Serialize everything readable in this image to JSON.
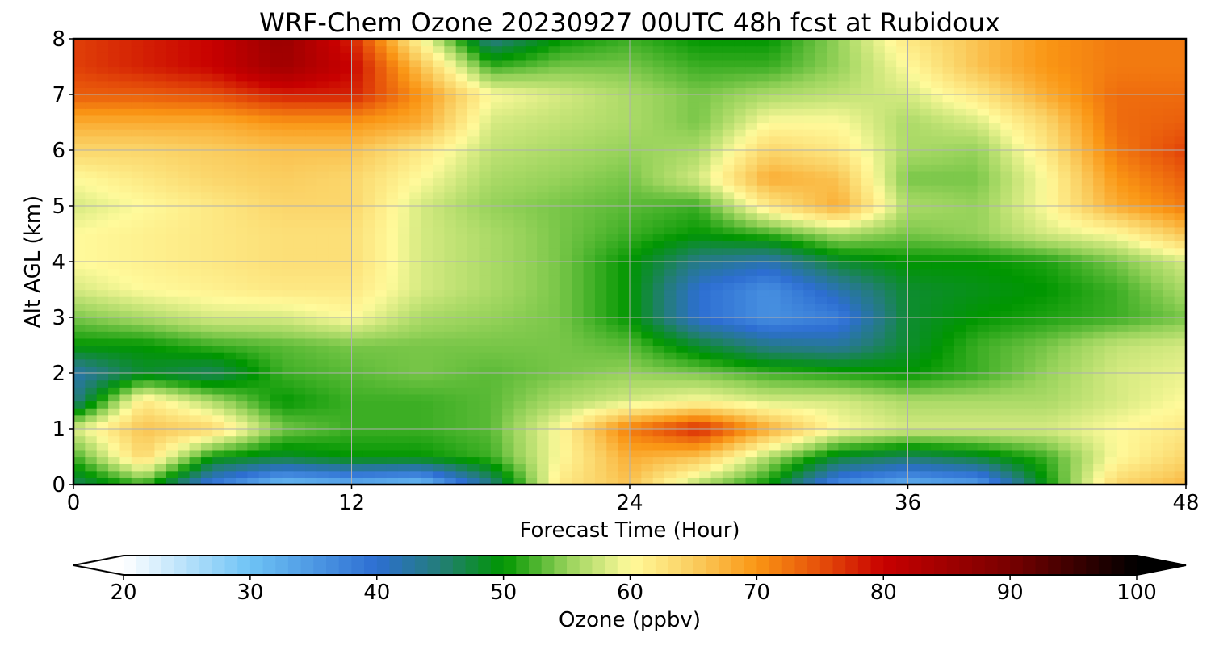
{
  "chart_data": {
    "type": "heatmap",
    "title": "WRF-Chem Ozone  20230927 00UTC 48h fcst at Rubidoux",
    "xlabel": "Forecast Time (Hour)",
    "ylabel": "Alt AGL (km)",
    "xlim": [
      0,
      48
    ],
    "ylim": [
      0,
      8
    ],
    "x_ticks": [
      "0",
      "12",
      "24",
      "36",
      "48"
    ],
    "y_ticks": [
      "0",
      "1",
      "2",
      "3",
      "4",
      "5",
      "6",
      "7",
      "8"
    ],
    "grid": true,
    "colorbar": {
      "label": "Ozone  (ppbv)",
      "range": [
        20,
        100
      ],
      "ticks": [
        "20",
        "30",
        "40",
        "50",
        "60",
        "70",
        "80",
        "90",
        "100"
      ],
      "extend": "both"
    },
    "altitudes_km": [
      0,
      0.5,
      1,
      1.5,
      2,
      2.5,
      3,
      3.5,
      4,
      4.5,
      5,
      5.5,
      6,
      6.5,
      7,
      7.5,
      8
    ],
    "hours": [
      0,
      3,
      6,
      9,
      12,
      15,
      18,
      21,
      24,
      27,
      30,
      33,
      36,
      39,
      42,
      45,
      48
    ],
    "values_ppbv": [
      [
        46,
        52,
        38,
        30,
        32,
        30,
        44,
        62,
        66,
        56,
        50,
        36,
        32,
        34,
        50,
        64,
        67
      ],
      [
        52,
        64,
        50,
        48,
        50,
        50,
        52,
        60,
        68,
        66,
        56,
        48,
        46,
        48,
        52,
        60,
        64
      ],
      [
        58,
        66,
        64,
        54,
        52,
        52,
        53,
        60,
        72,
        78,
        68,
        60,
        58,
        58,
        58,
        60,
        62
      ],
      [
        44,
        62,
        56,
        50,
        52,
        52,
        53,
        56,
        58,
        60,
        58,
        58,
        56,
        56,
        56,
        58,
        60
      ],
      [
        42,
        48,
        46,
        52,
        53,
        54,
        53,
        54,
        55,
        54,
        52,
        51,
        50,
        52,
        55,
        58,
        59
      ],
      [
        50,
        50,
        52,
        53,
        54,
        54,
        54,
        54,
        53,
        48,
        44,
        43,
        48,
        52,
        54,
        57,
        58
      ],
      [
        54,
        56,
        58,
        58,
        60,
        56,
        55,
        54,
        50,
        40,
        36,
        38,
        48,
        50,
        51,
        52,
        54
      ],
      [
        58,
        60,
        61,
        62,
        62,
        58,
        56,
        54,
        50,
        40,
        36,
        42,
        48,
        49,
        50,
        52,
        56
      ],
      [
        60,
        61,
        62,
        63,
        63,
        58,
        56,
        54,
        50,
        44,
        42,
        48,
        50,
        50,
        51,
        54,
        58
      ],
      [
        60,
        61,
        62,
        63,
        63,
        58,
        56,
        54,
        52,
        50,
        52,
        56,
        54,
        55,
        58,
        60,
        66
      ],
      [
        58,
        60,
        62,
        64,
        64,
        58,
        55,
        54,
        53,
        52,
        62,
        68,
        56,
        55,
        60,
        68,
        72
      ],
      [
        60,
        62,
        64,
        65,
        64,
        60,
        56,
        55,
        54,
        58,
        68,
        66,
        54,
        54,
        60,
        70,
        74
      ],
      [
        64,
        64,
        65,
        66,
        66,
        62,
        57,
        56,
        55,
        56,
        64,
        62,
        56,
        55,
        62,
        72,
        76
      ],
      [
        68,
        68,
        68,
        70,
        70,
        68,
        58,
        57,
        56,
        54,
        60,
        60,
        56,
        58,
        64,
        73,
        74
      ],
      [
        74,
        74,
        75,
        78,
        78,
        70,
        60,
        58,
        56,
        54,
        56,
        57,
        58,
        62,
        68,
        73,
        73
      ],
      [
        76,
        78,
        80,
        85,
        80,
        66,
        52,
        54,
        54,
        52,
        52,
        55,
        60,
        66,
        70,
        72,
        72
      ],
      [
        76,
        78,
        80,
        86,
        78,
        60,
        44,
        50,
        52,
        50,
        50,
        55,
        62,
        66,
        70,
        72,
        72
      ]
    ]
  }
}
